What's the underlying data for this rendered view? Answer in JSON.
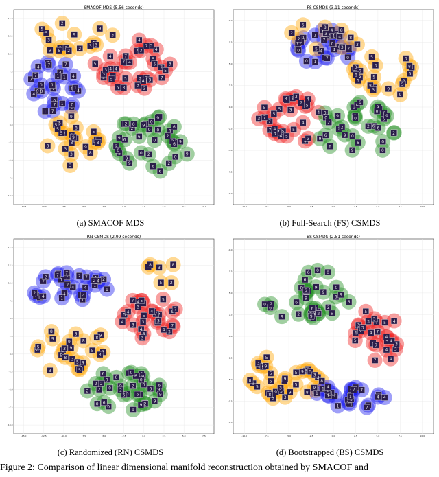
{
  "figure": {
    "caption": "Figure 2: Comparison of linear dimensional manifold reconstruction obtained by SMACOF and"
  },
  "colors": {
    "red": "#ee1c1c",
    "blue": "#1a1aee",
    "green": "#1e8c1e",
    "orange": "#ffa500",
    "tile": "#2a1d4a"
  },
  "panels": [
    {
      "id": "a",
      "caption": "(a) SMACOF MDS",
      "title": "SMACOF MDS (5.56 seconds)",
      "yticks": [
        "15.0",
        "12.5",
        "10.0",
        "7.5",
        "5.0",
        "2.5",
        "0.0",
        "-2.5",
        "-5.0",
        "-7.5",
        "-10.0"
      ],
      "xticks": [
        "-12.5",
        "-10.0",
        "-7.5",
        "-5.0",
        "-2.5",
        "0.0",
        "2.5",
        "5.0",
        "7.5",
        "10.0"
      ]
    },
    {
      "id": "b",
      "caption": "(b) Full-Search (FS) CSMDS",
      "title": "FS CSMDS (3.11 seconds)",
      "yticks": [
        "10.0",
        "7.5",
        "5.0",
        "2.5",
        "0.0",
        "-2.5",
        "-5.0",
        "-7.5",
        "-10.0"
      ],
      "xticks": [
        "-10.0",
        "-7.5",
        "-5.0",
        "-2.5",
        "0.0",
        "2.5",
        "5.0",
        "7.5",
        "10.0"
      ]
    },
    {
      "id": "c",
      "caption": "(c) Randomized (RN) CSMDS",
      "title": "RN CSMDS (2.99 seconds)",
      "yticks": [
        "15.0",
        "12.5",
        "10.0",
        "7.5",
        "5.0",
        "2.5",
        "0.0",
        "-2.5",
        "-5.0",
        "-7.5",
        "-10.0"
      ],
      "xticks": [
        "-15.0",
        "-12.5",
        "-10.0",
        "-7.5",
        "-5.0",
        "-2.5",
        "0.0",
        "2.5",
        "5.0",
        "7.5"
      ]
    },
    {
      "id": "d",
      "caption": "(d) Bootstrapped (BS) CSMDS",
      "title": "BS CSMDS (2.51 seconds)",
      "yticks": [
        "10.0",
        "7.5",
        "5.0",
        "2.5",
        "0.0",
        "-2.5",
        "-5.0",
        "-7.5",
        "-10.0"
      ],
      "xticks": [
        "-10.0",
        "-7.5",
        "-5.0",
        "-2.5",
        "0.0",
        "2.5",
        "5.0",
        "7.5",
        "10.0"
      ]
    }
  ]
}
